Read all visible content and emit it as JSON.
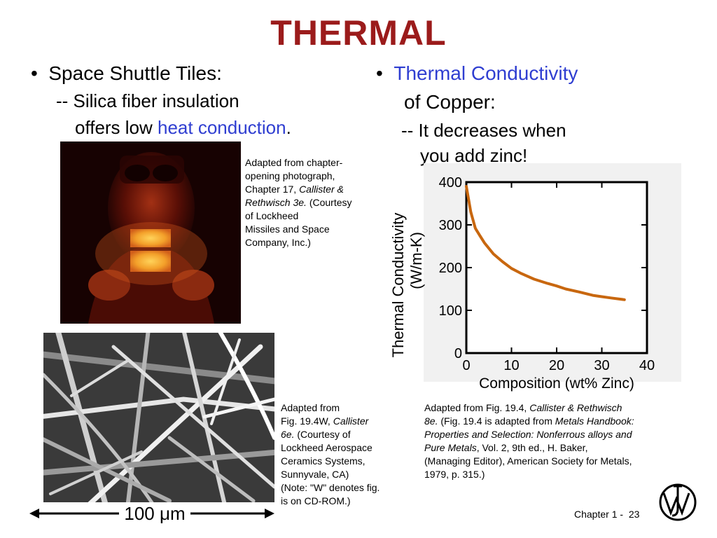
{
  "title": "THERMAL",
  "left": {
    "bullet": "Space Shuttle Tiles:",
    "sub1": "-- Silica fiber insulation",
    "sub2_prefix": "offers low ",
    "sub2_highlight": "heat conduction",
    "sub2_suffix": ".",
    "photo_caption": {
      "line1": "Adapted from chapter-",
      "line2": "opening photograph,",
      "line3_prefix": "Chapter 17, ",
      "line3_italic": "Callister &",
      "line4_italic": "Rethwisch 3e.",
      "line4_suffix": " (Courtesy",
      "line5": "of Lockheed",
      "line6": "Missiles and Space",
      "line7": "Company, Inc.)"
    },
    "micrograph_caption": {
      "line1": "Adapted from",
      "line2_prefix": "Fig. 19.4W, ",
      "line2_italic": "Callister",
      "line3_italic": "6e.",
      "line3_suffix": "  (Courtesy of",
      "line4": "Lockheed Aerospace",
      "line5": "Ceramics Systems,",
      "line6": "Sunnyvale, CA)",
      "line7": "(Note:  \"W\" denotes fig.",
      "line8": "is on CD-ROM.)"
    },
    "scale_bar": "100 μm"
  },
  "right": {
    "bullet_highlight": "Thermal Conductivity",
    "line2": "of Copper:",
    "line3": "-- It decreases when",
    "line4": "you add zinc!",
    "chart_caption": {
      "line1_prefix": "Adapted from Fig. 19.4, ",
      "line1_italic": "Callister & Rethwisch",
      "line2_italic": "8e.",
      "line2_mid": " (Fig. 19.4 is adapted from ",
      "line2_italic2": "Metals Handbook:",
      "line3_italic": "Properties and Selection: Nonferrous alloys and",
      "line4_italic": "Pure Metals",
      "line4_suffix": ", Vol. 2, 9th ed., H. Baker,",
      "line5": "(Managing Editor), American Society for Metals,",
      "line6": "1979, p. 315.)"
    }
  },
  "footer": {
    "chapter": "Chapter 1 -",
    "page": "23"
  },
  "colors": {
    "title": "#9b1b1b",
    "highlight": "#2f3ed1",
    "curve": "#c8670f"
  },
  "chart_data": {
    "type": "line",
    "xlabel": "Composition (wt% Zinc)",
    "ylabel_line1": "Thermal Conductivity",
    "ylabel_line2": "(W/m-K)",
    "xlim": [
      0,
      40
    ],
    "ylim": [
      0,
      400
    ],
    "xticks": [
      "0",
      "10",
      "20",
      "30",
      "40"
    ],
    "yticks": [
      "0",
      "100",
      "200",
      "300",
      "400"
    ],
    "grid": false,
    "series": [
      {
        "x": [
          0,
          0.5,
          1,
          2,
          3,
          4,
          6,
          8,
          10,
          12,
          15,
          18,
          20,
          22,
          25,
          28,
          30,
          32,
          35
        ],
        "values": [
          390,
          360,
          330,
          292,
          275,
          258,
          232,
          214,
          198,
          187,
          173,
          163,
          157,
          150,
          143,
          135,
          132,
          129,
          125
        ]
      }
    ]
  }
}
